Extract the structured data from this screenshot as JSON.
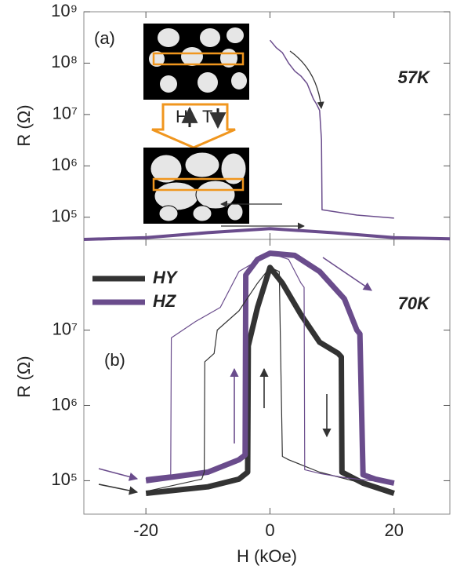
{
  "chart_data": [
    {
      "type": "line",
      "yscale": "log",
      "panel_label": "(a)",
      "annotation": "57K",
      "ylabel": "R (Ω)",
      "xlim": [
        -30,
        29
      ],
      "xticks": [
        -20,
        0,
        20
      ],
      "ylim": [
        37000,
        1000000000
      ],
      "yticks": [
        {
          "value": 100000,
          "label": "10⁵"
        },
        {
          "value": 1000000,
          "label": "10⁶"
        },
        {
          "value": 10000000,
          "label": "10⁷"
        },
        {
          "value": 100000000,
          "label": "10⁸"
        },
        {
          "value": 1000000000,
          "label": "10⁹"
        }
      ],
      "inset": {
        "labels": [
          "H",
          "T"
        ]
      },
      "series": [
        {
          "color": "#6a4c8c",
          "linewidth": 1.5,
          "x": [
            0,
            1,
            2,
            3,
            4,
            5,
            6,
            7,
            7.5,
            8,
            8.3,
            8.4,
            14,
            20
          ],
          "values": [
            280000000,
            200000000,
            160000000,
            100000000,
            70000000,
            56000000,
            40000000,
            20000000,
            16000000,
            12000000,
            3200000,
            140000,
            110000,
            96000
          ]
        },
        {
          "color": "#6a4c8c",
          "linewidth": 4,
          "x": [
            -30,
            -20,
            -10,
            0,
            10,
            20,
            29
          ],
          "values": [
            37000,
            40000,
            50000,
            60000,
            50000,
            40000,
            38000
          ]
        }
      ]
    },
    {
      "type": "line",
      "yscale": "log",
      "panel_label": "(b)",
      "annotation": "70K",
      "ylabel": "R (Ω)",
      "xlabel": "H (kOe)",
      "xlim": [
        -30,
        29
      ],
      "xticks": [
        -20,
        0,
        20
      ],
      "ylim": [
        36000,
        160000000
      ],
      "yticks": [
        {
          "value": 100000,
          "label": "10⁵"
        },
        {
          "value": 1000000,
          "label": "10⁶"
        },
        {
          "value": 10000000,
          "label": "10⁷"
        }
      ],
      "series": [
        {
          "name": "HY",
          "color": "#333333",
          "linewidth": 7,
          "x": [
            -20,
            -10,
            -5,
            -3.6,
            -3.5,
            -2,
            0,
            2,
            5,
            8,
            11,
            11.5,
            11.6,
            15,
            20
          ],
          "values": [
            68000,
            83000,
            105000,
            130000,
            6200000,
            20000000,
            68000000,
            42000000,
            16000000,
            6900000,
            4900000,
            4400000,
            130000,
            93000,
            68000
          ]
        },
        {
          "name": "HZ",
          "color": "#6a4c8c",
          "linewidth": 7,
          "x": [
            -20,
            -10,
            -5,
            -4,
            -3.9,
            -2,
            0,
            4,
            8,
            12,
            14,
            14.5,
            15,
            17,
            20
          ],
          "values": [
            100000,
            130000,
            190000,
            220000,
            54000000,
            87000000,
            105000000,
            98000000,
            60000000,
            26000000,
            10000000,
            8900000,
            120000,
            105000,
            93000
          ]
        },
        {
          "color": "#333333",
          "linewidth": 1.2,
          "x": [
            -20,
            -11,
            -10.6,
            -10.5,
            -9,
            -8.5,
            -5,
            -2,
            0,
            1.5,
            2,
            3,
            8,
            20
          ],
          "values": [
            72000,
            105000,
            130000,
            3800000,
            4900000,
            10000000,
            18000000,
            42000000,
            68000000,
            60000000,
            210000,
            190000,
            130000,
            72000
          ]
        },
        {
          "color": "#6a4c8c",
          "linewidth": 1.2,
          "x": [
            -20,
            -16,
            -15.9,
            -12,
            -8,
            -5,
            0,
            3,
            5,
            5.5,
            5.6,
            8,
            12,
            20
          ],
          "values": [
            110000,
            120000,
            7900000,
            13000000,
            20000000,
            60000000,
            105000000,
            87000000,
            42000000,
            37000000,
            140000,
            125000,
            110000,
            93000
          ]
        }
      ]
    }
  ]
}
